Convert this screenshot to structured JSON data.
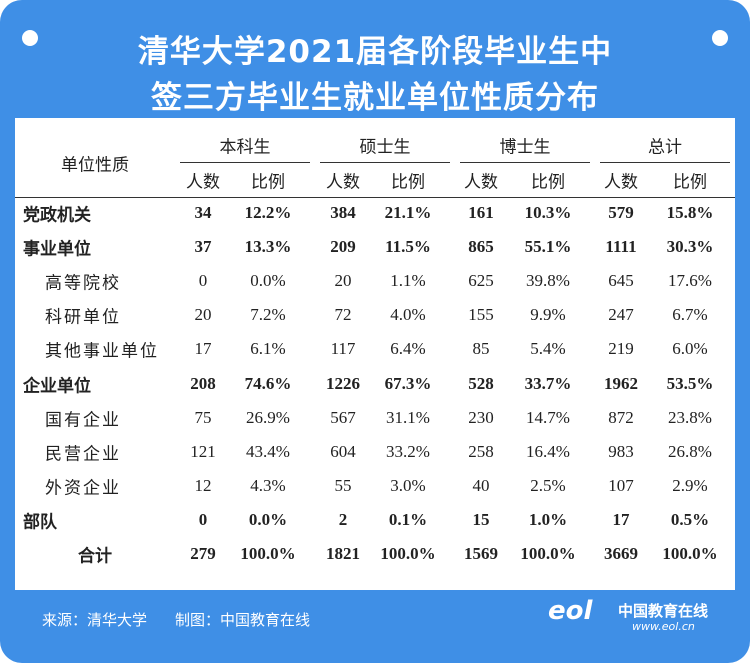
{
  "header": {
    "title_lines": [
      "清华大学2021届各阶段毕业生中",
      "签三方毕业生就业单位性质分布"
    ]
  },
  "table": {
    "corner": "单位性质",
    "groups": [
      "本科生",
      "硕士生",
      "博士生",
      "总计"
    ],
    "subheaders": [
      "人数",
      "比例"
    ],
    "rows": [
      {
        "label": "党政机关",
        "style": "bold",
        "cells": [
          "34",
          "12.2%",
          "384",
          "21.1%",
          "161",
          "10.3%",
          "579",
          "15.8%"
        ]
      },
      {
        "label": "事业单位",
        "style": "bold",
        "cells": [
          "37",
          "13.3%",
          "209",
          "11.5%",
          "865",
          "55.1%",
          "1111",
          "30.3%"
        ]
      },
      {
        "label": "高等院校",
        "style": "sub",
        "cells": [
          "0",
          "0.0%",
          "20",
          "1.1%",
          "625",
          "39.8%",
          "645",
          "17.6%"
        ]
      },
      {
        "label": "科研单位",
        "style": "sub",
        "cells": [
          "20",
          "7.2%",
          "72",
          "4.0%",
          "155",
          "9.9%",
          "247",
          "6.7%"
        ]
      },
      {
        "label": "其他事业单位",
        "style": "sub",
        "cells": [
          "17",
          "6.1%",
          "117",
          "6.4%",
          "85",
          "5.4%",
          "219",
          "6.0%"
        ]
      },
      {
        "label": "企业单位",
        "style": "bold",
        "cells": [
          "208",
          "74.6%",
          "1226",
          "67.3%",
          "528",
          "33.7%",
          "1962",
          "53.5%"
        ]
      },
      {
        "label": "国有企业",
        "style": "sub",
        "cells": [
          "75",
          "26.9%",
          "567",
          "31.1%",
          "230",
          "14.7%",
          "872",
          "23.8%"
        ]
      },
      {
        "label": "民营企业",
        "style": "sub",
        "cells": [
          "121",
          "43.4%",
          "604",
          "33.2%",
          "258",
          "16.4%",
          "983",
          "26.8%"
        ]
      },
      {
        "label": "外资企业",
        "style": "sub",
        "cells": [
          "12",
          "4.3%",
          "55",
          "3.0%",
          "40",
          "2.5%",
          "107",
          "2.9%"
        ]
      },
      {
        "label": "部队",
        "style": "bold",
        "cells": [
          "0",
          "0.0%",
          "2",
          "0.1%",
          "15",
          "1.0%",
          "17",
          "0.5%"
        ]
      },
      {
        "label": "合计",
        "style": "total",
        "cells": [
          "279",
          "100.0%",
          "1821",
          "100.0%",
          "1569",
          "100.0%",
          "3669",
          "100.0%"
        ]
      }
    ]
  },
  "footer": {
    "source": "来源：清华大学",
    "maker": "制图：中国教育在线",
    "logo": "eol",
    "logo_name": "中国教育在线",
    "logo_url": "www.eol.cn"
  }
}
